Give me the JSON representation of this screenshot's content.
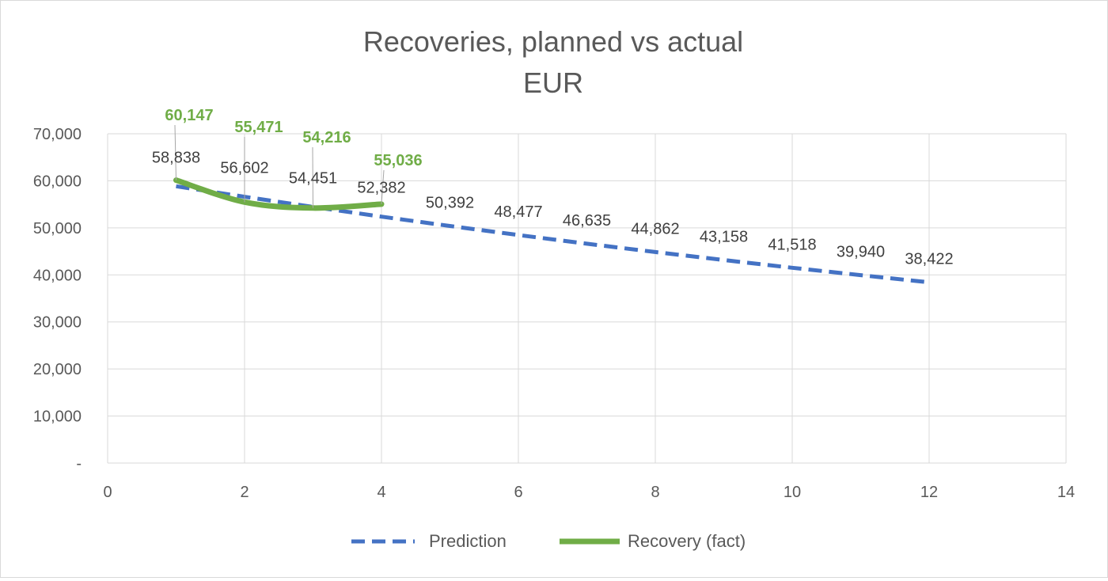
{
  "chart_data": {
    "type": "line",
    "title": "Recoveries, planned vs actual",
    "subtitle": "EUR",
    "xlim": [
      0,
      14
    ],
    "ylim": [
      0,
      70000
    ],
    "x_ticks": [
      0,
      2,
      4,
      6,
      8,
      10,
      12,
      14
    ],
    "y_ticks": [
      0,
      10000,
      20000,
      30000,
      40000,
      50000,
      60000,
      70000
    ],
    "y_tick_labels": [
      "-",
      "10,000",
      "20,000",
      "30,000",
      "40,000",
      "50,000",
      "60,000",
      "70,000"
    ],
    "grid": true,
    "legend_position": "bottom",
    "series": [
      {
        "name": "Prediction",
        "color": "#4472c4",
        "style": "dashed",
        "x": [
          1,
          2,
          3,
          4,
          5,
          6,
          7,
          8,
          9,
          10,
          11,
          12
        ],
        "values": [
          58838,
          56602,
          54451,
          52382,
          50392,
          48477,
          46635,
          44862,
          43158,
          41518,
          39940,
          38422
        ],
        "labels": [
          "58,838",
          "56,602",
          "54,451",
          "52,382",
          "50,392",
          "48,477",
          "46,635",
          "44,862",
          "43,158",
          "41,518",
          "39,940",
          "38,422"
        ]
      },
      {
        "name": "Recovery (fact)",
        "color": "#70ad47",
        "style": "solid-smooth",
        "x": [
          1,
          2,
          3,
          4
        ],
        "values": [
          60147,
          55471,
          54216,
          55036
        ],
        "labels": [
          "60,147",
          "55,471",
          "54,216",
          "55,036"
        ]
      }
    ]
  }
}
